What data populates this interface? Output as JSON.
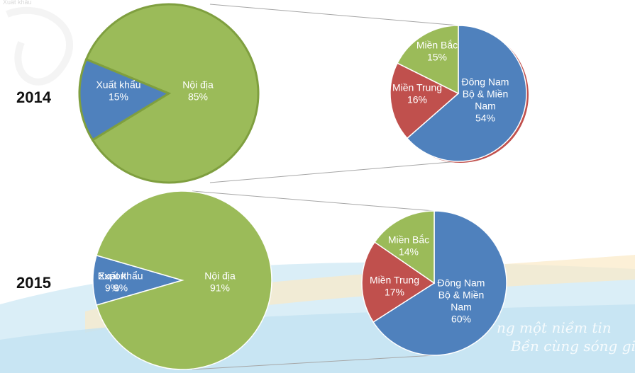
{
  "corner_text": "Xuất khẩu",
  "watermark": [
    "ng một niềm tin",
    "Bền cùng sóng gió"
  ],
  "colors": {
    "noi_dia": "#9BBB59",
    "xuat_khau": "#4F81BD",
    "dong_nam": "#4F81BD",
    "mien_trung": "#C0504D",
    "mien_bac": "#9BBB59"
  },
  "chart_data": [
    {
      "type": "pie",
      "title": "2014",
      "slices": [
        {
          "label": "Xuất khẩu",
          "value": 15,
          "pct": "15%",
          "color": "#4F81BD"
        },
        {
          "label": "Nội địa",
          "value": 85,
          "pct": "85%",
          "color": "#9BBB59"
        }
      ]
    },
    {
      "type": "pie",
      "title": "",
      "slices": [
        {
          "label": "Đông Nam Bộ & Miền Nam",
          "value": 54,
          "pct": "54%",
          "color": "#4F81BD"
        },
        {
          "label": "Miền Trung",
          "value": 16,
          "pct": "16%",
          "color": "#C0504D"
        },
        {
          "label": "Miền Bắc",
          "value": 15,
          "pct": "15%",
          "color": "#9BBB59"
        }
      ]
    },
    {
      "type": "pie",
      "title": "2015",
      "slices": [
        {
          "label": "Xuất khẩu",
          "value": 9,
          "pct": "9%",
          "color": "#4F81BD"
        },
        {
          "label": "Nội địa",
          "value": 91,
          "pct": "91%",
          "color": "#9BBB59"
        }
      ],
      "overlap_text": {
        "label": "Export",
        "pct": "9%"
      }
    },
    {
      "type": "pie",
      "title": "",
      "slices": [
        {
          "label": "Đông Nam Bộ & Miền Nam",
          "value": 60,
          "pct": "60%",
          "color": "#4F81BD"
        },
        {
          "label": "Miền Trung",
          "value": 17,
          "pct": "17%",
          "color": "#C0504D"
        },
        {
          "label": "Miền Bắc",
          "value": 14,
          "pct": "14%",
          "color": "#9BBB59"
        }
      ]
    }
  ]
}
